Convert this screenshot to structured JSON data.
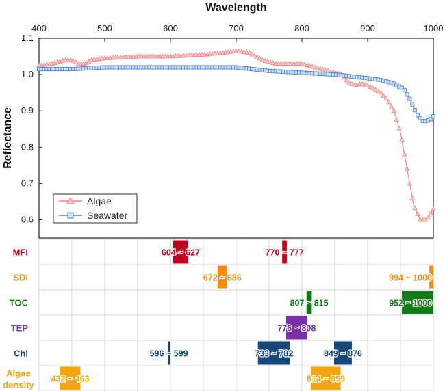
{
  "chart_data": {
    "type": "line",
    "title": "",
    "xlabel": "Wavelength",
    "ylabel": "Reflectance",
    "xlim": [
      400,
      1000
    ],
    "ylim": [
      0.55,
      1.1
    ],
    "xticks": [
      400,
      500,
      600,
      700,
      800,
      900,
      1000
    ],
    "yticks": [
      0.6,
      0.7,
      0.8,
      0.9,
      1.0,
      1.1
    ],
    "xtick_labels": [
      "400",
      "500",
      "600",
      "700",
      "800",
      "900",
      "1000"
    ],
    "ytick_labels": [
      "0.6",
      "0.7",
      "0.8",
      "0.9",
      "1.0",
      "1.1"
    ],
    "legend": {
      "position": "bottom-left"
    },
    "series": [
      {
        "name": "Algae",
        "color": "#f08080",
        "marker": "triangle",
        "points": [
          [
            400,
            1.025
          ],
          [
            420,
            1.03
          ],
          [
            440,
            1.04
          ],
          [
            450,
            1.04
          ],
          [
            460,
            1.03
          ],
          [
            470,
            1.03
          ],
          [
            480,
            1.04
          ],
          [
            500,
            1.045
          ],
          [
            550,
            1.05
          ],
          [
            600,
            1.05
          ],
          [
            650,
            1.055
          ],
          [
            680,
            1.06
          ],
          [
            700,
            1.065
          ],
          [
            720,
            1.06
          ],
          [
            740,
            1.04
          ],
          [
            760,
            1.03
          ],
          [
            780,
            1.03
          ],
          [
            800,
            1.03
          ],
          [
            820,
            1.02
          ],
          [
            840,
            1.01
          ],
          [
            860,
            1.0
          ],
          [
            870,
            0.98
          ],
          [
            880,
            0.97
          ],
          [
            890,
            0.975
          ],
          [
            900,
            0.97
          ],
          [
            910,
            0.96
          ],
          [
            920,
            0.95
          ],
          [
            930,
            0.93
          ],
          [
            940,
            0.9
          ],
          [
            950,
            0.84
          ],
          [
            960,
            0.74
          ],
          [
            970,
            0.64
          ],
          [
            980,
            0.6
          ],
          [
            990,
            0.6
          ],
          [
            1000,
            0.63
          ]
        ]
      },
      {
        "name": "Seawater",
        "color": "#4a7fc8",
        "marker": "square",
        "points": [
          [
            400,
            1.015
          ],
          [
            450,
            1.015
          ],
          [
            500,
            1.02
          ],
          [
            600,
            1.02
          ],
          [
            700,
            1.02
          ],
          [
            750,
            1.01
          ],
          [
            800,
            1.005
          ],
          [
            850,
            1.0
          ],
          [
            900,
            0.99
          ],
          [
            920,
            0.985
          ],
          [
            940,
            0.975
          ],
          [
            955,
            0.96
          ],
          [
            965,
            0.93
          ],
          [
            975,
            0.89
          ],
          [
            985,
            0.87
          ],
          [
            995,
            0.875
          ],
          [
            1000,
            0.885
          ]
        ]
      }
    ],
    "ranges": [
      {
        "label": "MFI",
        "color": "#c0001e",
        "intervals": [
          {
            "start": 604,
            "end": 627,
            "text": "604 ~ 627"
          },
          {
            "start": 770,
            "end": 777,
            "text": "770 ~ 777"
          }
        ]
      },
      {
        "label": "SDI",
        "color": "#f08c14",
        "intervals": [
          {
            "start": 672,
            "end": 686,
            "text": "672 ~ 686"
          },
          {
            "start": 994,
            "end": 1000,
            "text": "994 ~ 1000"
          }
        ]
      },
      {
        "label": "TOC",
        "color": "#137a1a",
        "intervals": [
          {
            "start": 807,
            "end": 815,
            "text": "807 ~ 815"
          },
          {
            "start": 952,
            "end": 1000,
            "text": "952 ~ 1000"
          }
        ]
      },
      {
        "label": "TEP",
        "color": "#7a30a8",
        "intervals": [
          {
            "start": 776,
            "end": 808,
            "text": "776 ~ 808"
          }
        ]
      },
      {
        "label": "Chl",
        "color": "#17467a",
        "intervals": [
          {
            "start": 596,
            "end": 599,
            "text": "596 ~ 599"
          },
          {
            "start": 733,
            "end": 782,
            "text": "733 ~ 782"
          },
          {
            "start": 849,
            "end": 876,
            "text": "849 ~ 876"
          }
        ]
      },
      {
        "label": "Algae density",
        "color": "#f0a512",
        "intervals": [
          {
            "start": 432,
            "end": 463,
            "text": "432 ~ 463"
          },
          {
            "start": 814,
            "end": 859,
            "text": "814 ~ 859"
          }
        ]
      }
    ]
  }
}
